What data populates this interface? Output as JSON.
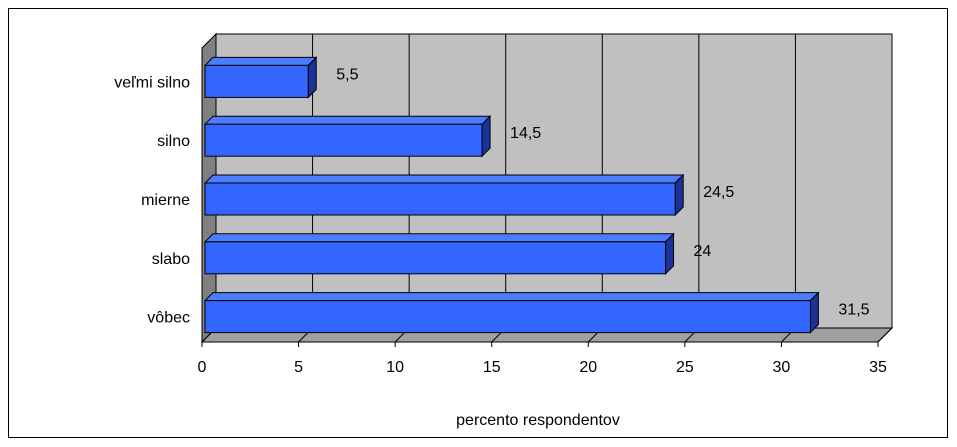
{
  "chart_data": {
    "type": "bar",
    "orientation": "horizontal",
    "categories": [
      "veľmi silno",
      "silno",
      "mierne",
      "slabo",
      "vôbec"
    ],
    "values": [
      5.5,
      14.5,
      24.5,
      24,
      31.5
    ],
    "value_labels": [
      "5,5",
      "14,5",
      "24,5",
      "24",
      "31,5"
    ],
    "xlabel": "percento respondentov",
    "ylabel": "",
    "xlim": [
      0,
      35
    ],
    "xticks": [
      0,
      5,
      10,
      15,
      20,
      25,
      30,
      35
    ],
    "grid": true,
    "legend": "none",
    "colors": {
      "bar_front": "#3366ff",
      "bar_top": "#4d7dff",
      "bar_side": "#1a3399",
      "plot_back": "#c0c0c0",
      "plot_wall": "#808080",
      "plot_floor": "#a0a0a0",
      "gridline": "#000000"
    }
  }
}
